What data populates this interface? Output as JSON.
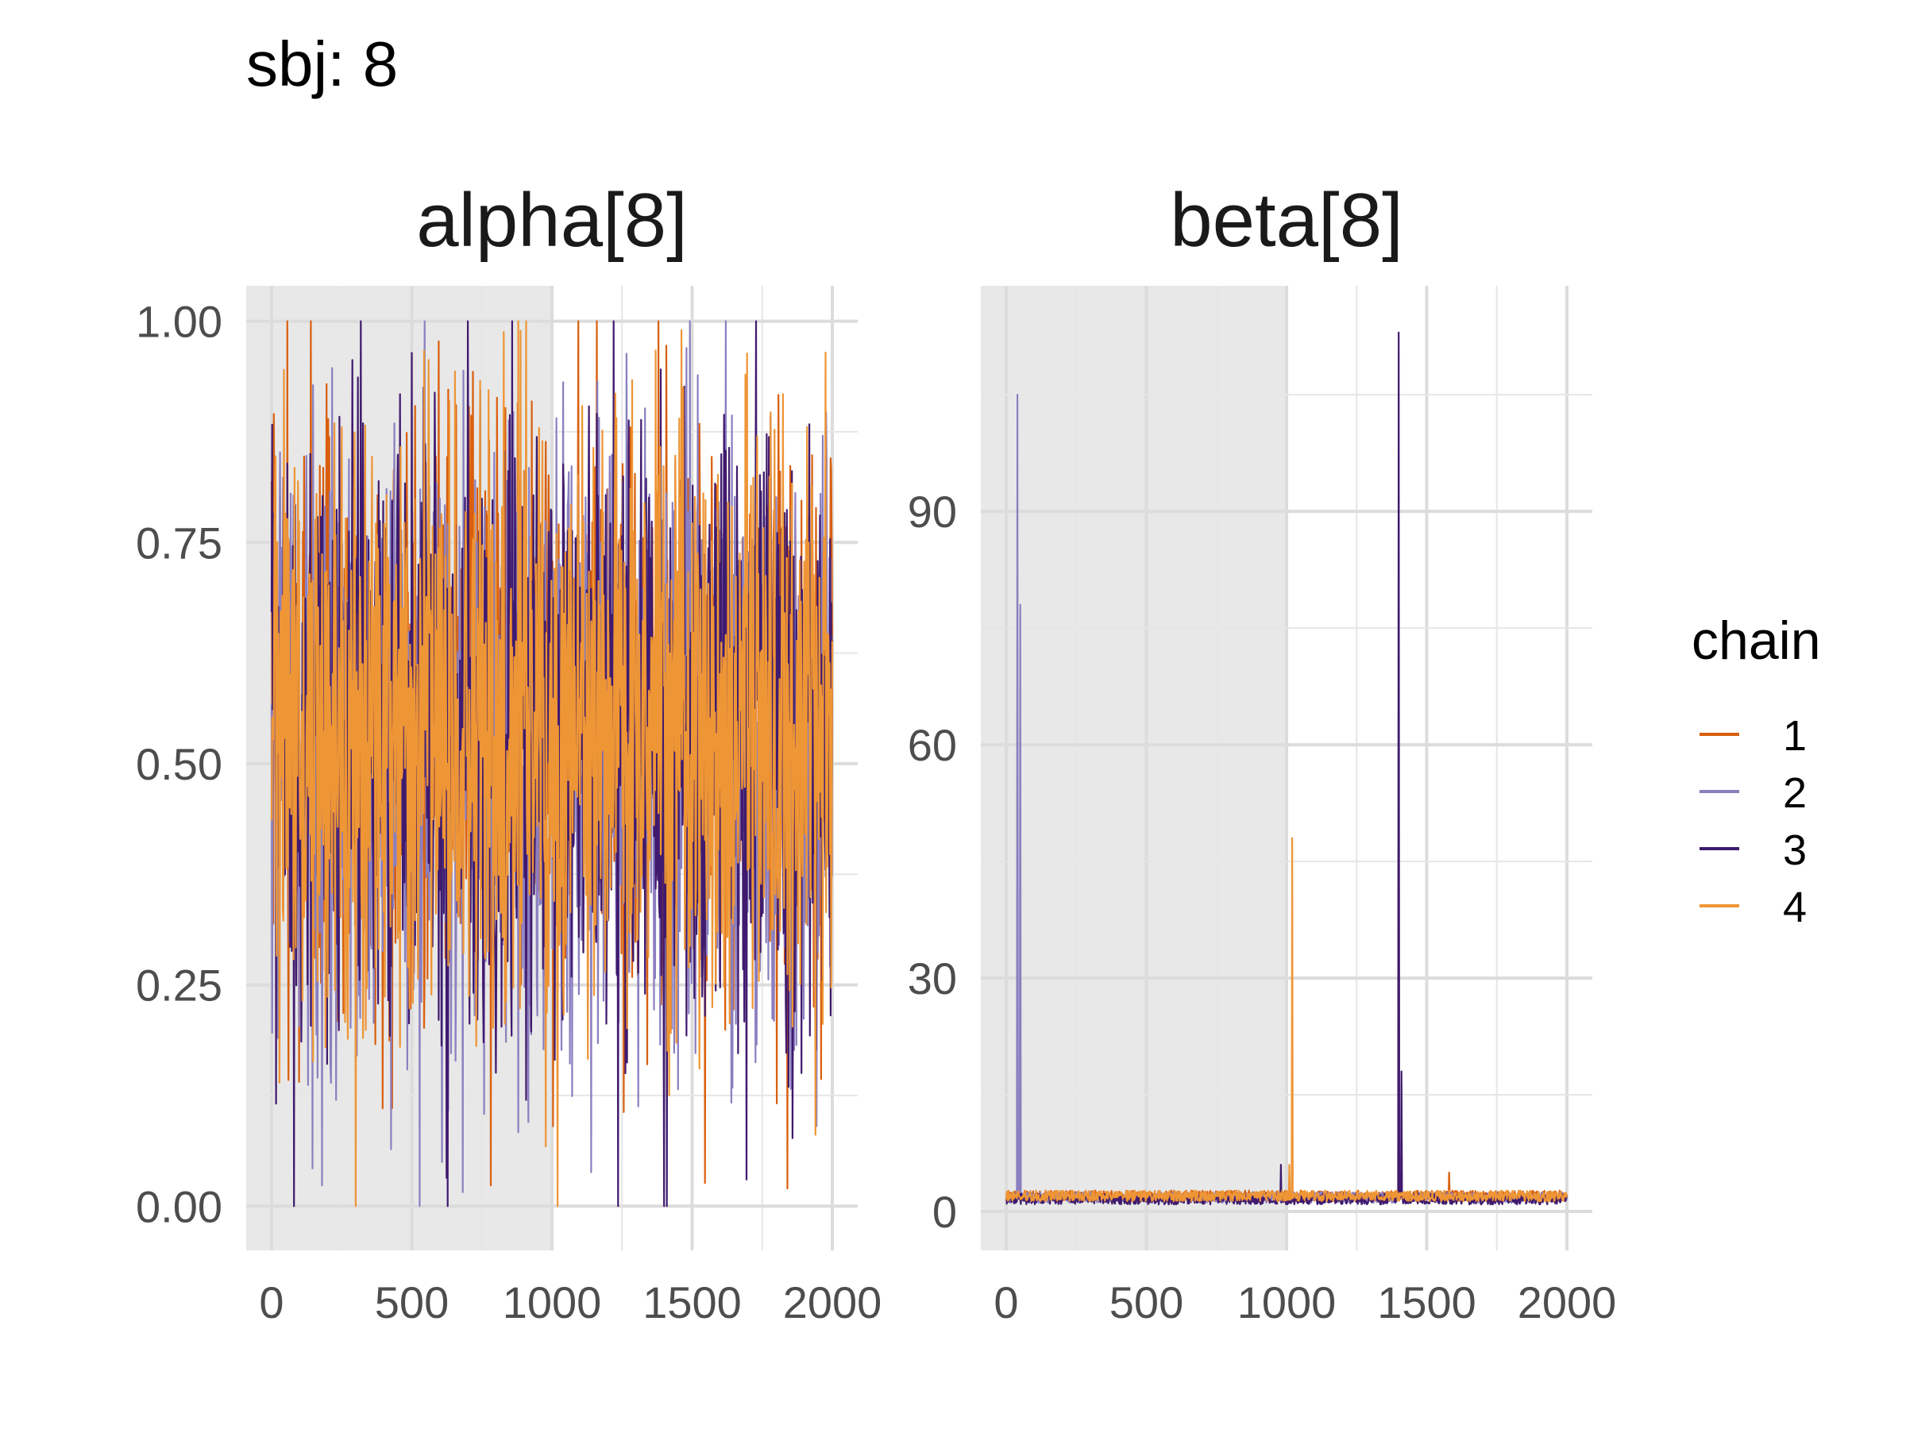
{
  "title": "sbj: 8",
  "legend": {
    "title": "chain",
    "entries": [
      {
        "label": "1",
        "color": "#D95F0E"
      },
      {
        "label": "2",
        "color": "#8B7FBF"
      },
      {
        "label": "3",
        "color": "#3F1A6E"
      },
      {
        "label": "4",
        "color": "#EE9535"
      }
    ]
  },
  "chart_data": [
    {
      "type": "line",
      "title": "alpha[8]",
      "x_range": [
        0,
        2000
      ],
      "x_ticks": [
        0,
        500,
        1000,
        1500,
        2000
      ],
      "x_tick_labels": [
        "0",
        "500",
        "1000",
        "1500",
        "2000"
      ],
      "ylim": [
        -0.05,
        1.04
      ],
      "y_ticks": [
        0,
        0.25,
        0.5,
        0.75,
        1.0
      ],
      "y_tick_labels": [
        "0.00",
        "0.25",
        "0.50",
        "0.75",
        "1.00"
      ],
      "shaded_region": [
        0,
        1000
      ],
      "grid": true,
      "series": [
        {
          "name": "1",
          "color": "#D95F0E",
          "center": 0.55,
          "spread": 0.38,
          "spikes": [
            [
              985,
              0.0
            ],
            [
              1395,
              0.05
            ],
            [
              1840,
              0.02
            ]
          ]
        },
        {
          "name": "2",
          "color": "#8B7FBF",
          "center": 0.52,
          "spread": 0.42,
          "spikes": [
            [
              45,
              0.0
            ],
            [
              230,
              0.12
            ],
            [
              1505,
              0.02
            ],
            [
              1620,
              1.0
            ]
          ]
        },
        {
          "name": "3",
          "color": "#3F1A6E",
          "center": 0.54,
          "spread": 0.42,
          "spikes": [
            [
              15,
              0.15
            ],
            [
              80,
              0.0
            ],
            [
              1400,
              0.0
            ],
            [
              1410,
              0.0
            ],
            [
              1220,
              1.0
            ]
          ]
        },
        {
          "name": "4",
          "color": "#EE9535",
          "center": 0.55,
          "spread": 0.4,
          "spikes": [
            [
              300,
              0.0
            ],
            [
              1020,
              0.0
            ],
            [
              1545,
              0.0
            ],
            [
              880,
              1.0
            ]
          ]
        }
      ]
    },
    {
      "type": "line",
      "title": "beta[8]",
      "x_range": [
        0,
        2000
      ],
      "x_ticks": [
        0,
        500,
        1000,
        1500,
        2000
      ],
      "x_tick_labels": [
        "0",
        "500",
        "1000",
        "1500",
        "2000"
      ],
      "ylim": [
        -5,
        119
      ],
      "y_ticks": [
        0,
        30,
        60,
        90
      ],
      "y_tick_labels": [
        "0",
        "30",
        "60",
        "90"
      ],
      "shaded_region": [
        0,
        1000
      ],
      "grid": true,
      "series": [
        {
          "name": "1",
          "color": "#D95F0E",
          "baseline": 2.0,
          "noise": 1.4,
          "spikes": [
            [
              1400,
              62
            ],
            [
              1580,
              5
            ]
          ]
        },
        {
          "name": "2",
          "color": "#8B7FBF",
          "baseline": 1.8,
          "noise": 1.4,
          "spikes": [
            [
              40,
              105
            ],
            [
              50,
              78
            ],
            [
              55,
              35
            ],
            [
              1535,
              9
            ]
          ]
        },
        {
          "name": "3",
          "color": "#3F1A6E",
          "baseline": 1.6,
          "noise": 1.4,
          "spikes": [
            [
              75,
              32
            ],
            [
              980,
              6
            ],
            [
              1400,
              113
            ],
            [
              1410,
              18
            ]
          ]
        },
        {
          "name": "4",
          "color": "#EE9535",
          "baseline": 2.0,
          "noise": 1.4,
          "spikes": [
            [
              1020,
              48
            ],
            [
              1010,
              6
            ]
          ]
        }
      ]
    }
  ]
}
